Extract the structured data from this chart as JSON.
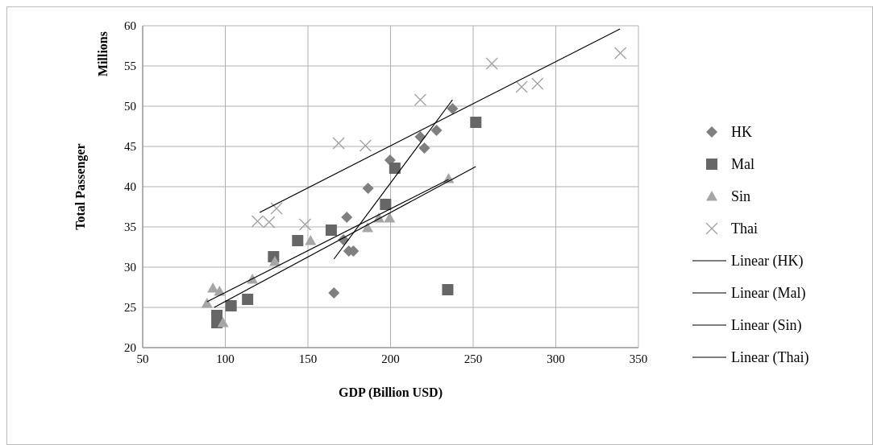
{
  "chart_data": {
    "type": "scatter",
    "xlabel": "GDP (Billion USD)",
    "ylabel": "Total Passenger",
    "annotations": [
      "Millions"
    ],
    "xlim": [
      50,
      350
    ],
    "xticks": [
      50,
      100,
      150,
      200,
      250,
      300,
      350
    ],
    "ylim": [
      20,
      60
    ],
    "yticks": [
      20,
      25,
      30,
      35,
      40,
      45,
      50,
      55,
      60
    ],
    "grid": true,
    "legend": "right",
    "series": [
      {
        "name": "HK",
        "type": "scatter",
        "marker": "diamond",
        "color": "#7f7f7f",
        "x": [
          165.7,
          173.5,
          186.4,
          174.8,
          177.5,
          171.5,
          199.7,
          218,
          220.5,
          227.8,
          237.5
        ],
        "values": [
          26.8,
          36.2,
          39.8,
          32.0,
          32.0,
          33.4,
          43.3,
          46.2,
          44.8,
          47.0,
          49.7
        ]
      },
      {
        "name": "Mal",
        "type": "scatter",
        "marker": "square",
        "color": "#666666",
        "x": [
          164.1,
          197,
          202.6,
          234.6,
          251.6,
          143.8,
          129.2,
          113.5,
          103.5,
          94.9,
          94.9
        ],
        "values": [
          34.6,
          37.8,
          42.3,
          27.2,
          48.0,
          33.3,
          31.3,
          26.0,
          25.2,
          24.0,
          23.1
        ]
      },
      {
        "name": "Sin",
        "type": "scatter",
        "marker": "triangle",
        "color": "#a6a6a6",
        "x": [
          92.5,
          96.5,
          88.9,
          98.6,
          116.4,
          130,
          151.6,
          186.1,
          192.9,
          199.4,
          235.1
        ],
        "values": [
          27.4,
          27.0,
          25.5,
          23.1,
          28.5,
          30.7,
          33.3,
          34.9,
          36.1,
          36.1,
          41.0
        ]
      },
      {
        "name": "Thai",
        "type": "scatter",
        "marker": "cross",
        "color": "#a0a0a0",
        "x": [
          119.5,
          126.5,
          131,
          148.3,
          168.6,
          184.8,
          218,
          261.3,
          279.3,
          288.9,
          339.1
        ],
        "values": [
          35.7,
          35.6,
          37.3,
          35.3,
          45.4,
          45.1,
          50.8,
          55.3,
          52.4,
          52.8,
          56.6
        ]
      },
      {
        "name": "Linear (HK)",
        "type": "line",
        "marker": "none",
        "line_style": "solid",
        "color": "#000000",
        "x": [
          165.7,
          237.5
        ],
        "values": [
          31.0,
          50.8
        ]
      },
      {
        "name": "Linear (Mal)",
        "type": "line",
        "marker": "none",
        "line_style": "solid",
        "color": "#000000",
        "x": [
          93.3,
          251.6
        ],
        "values": [
          25.0,
          42.5
        ]
      },
      {
        "name": "Linear (Sin)",
        "type": "line",
        "marker": "none",
        "line_style": "solid",
        "color": "#000000",
        "x": [
          88.9,
          235.1
        ],
        "values": [
          25.7,
          40.9
        ]
      },
      {
        "name": "Linear (Thai)",
        "type": "line",
        "marker": "none",
        "line_style": "solid",
        "color": "#000000",
        "x": [
          120.8,
          338.8
        ],
        "values": [
          36.8,
          59.6
        ]
      }
    ]
  }
}
